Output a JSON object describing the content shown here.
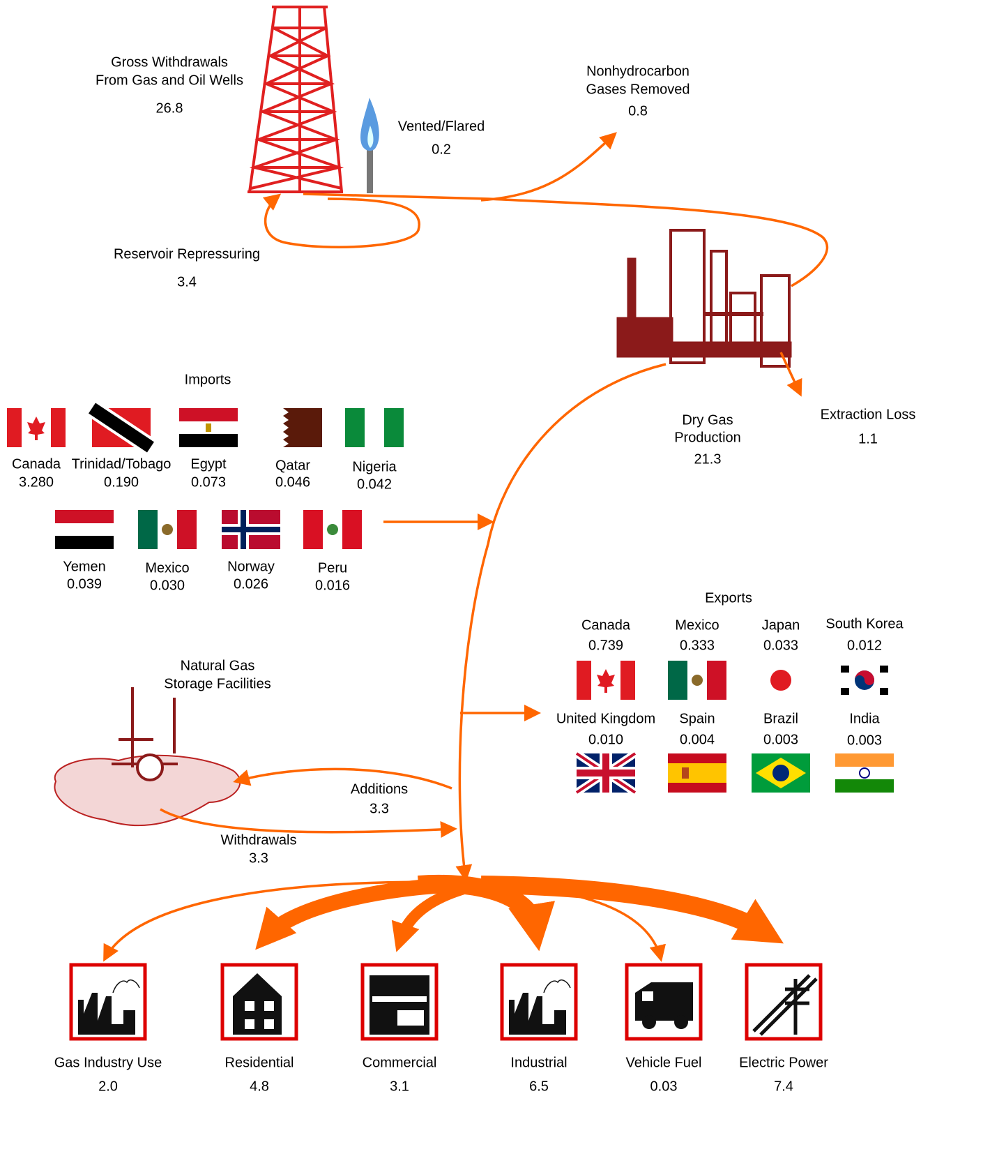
{
  "gross_withdrawals": {
    "label": [
      "Gross Withdrawals",
      "From Gas and Oil Wells"
    ],
    "value": "26.8"
  },
  "vented_flared": {
    "label": "Vented/Flared",
    "value": "0.2"
  },
  "nonhydrocarbon": {
    "label": [
      "Nonhydrocarbon",
      "Gases Removed"
    ],
    "value": "0.8"
  },
  "reservoir_repressuring": {
    "label": "Reservoir Repressuring",
    "value": "3.4"
  },
  "dry_gas_production": {
    "label": [
      "Dry Gas",
      "Production"
    ],
    "value": "21.3"
  },
  "extraction_loss": {
    "label": "Extraction Loss",
    "value": "1.1"
  },
  "imports": {
    "title": "Imports",
    "countries": [
      {
        "name": "Canada",
        "value": "3.280"
      },
      {
        "name": "Trinidad/Tobago",
        "value": "0.190"
      },
      {
        "name": "Egypt",
        "value": "0.073"
      },
      {
        "name": "Qatar",
        "value": "0.046"
      },
      {
        "name": "Nigeria",
        "value": "0.042"
      },
      {
        "name": "Yemen",
        "value": "0.039"
      },
      {
        "name": "Mexico",
        "value": "0.030"
      },
      {
        "name": "Norway",
        "value": "0.026"
      },
      {
        "name": "Peru",
        "value": "0.016"
      }
    ]
  },
  "exports": {
    "title": "Exports",
    "countries": [
      {
        "name": "Canada",
        "value": "0.739"
      },
      {
        "name": "Mexico",
        "value": "0.333"
      },
      {
        "name": "Japan",
        "value": "0.033"
      },
      {
        "name": "South Korea",
        "value": "0.012"
      },
      {
        "name": "United Kingdom",
        "value": "0.010"
      },
      {
        "name": "Spain",
        "value": "0.004"
      },
      {
        "name": "Brazil",
        "value": "0.003"
      },
      {
        "name": "India",
        "value": "0.003"
      }
    ]
  },
  "storage": {
    "label": [
      "Natural Gas",
      "Storage Facilities"
    ],
    "additions": {
      "label": "Additions",
      "value": "3.3"
    },
    "withdrawals": {
      "label": "Withdrawals",
      "value": "3.3"
    }
  },
  "consumption": [
    {
      "name": "Gas Industry Use",
      "value": "2.0"
    },
    {
      "name": "Residential",
      "value": "4.8"
    },
    {
      "name": "Commercial",
      "value": "3.1"
    },
    {
      "name": "Industrial",
      "value": "6.5"
    },
    {
      "name": "Vehicle Fuel",
      "value": "0.03"
    },
    {
      "name": "Electric Power",
      "value": "7.4"
    }
  ]
}
